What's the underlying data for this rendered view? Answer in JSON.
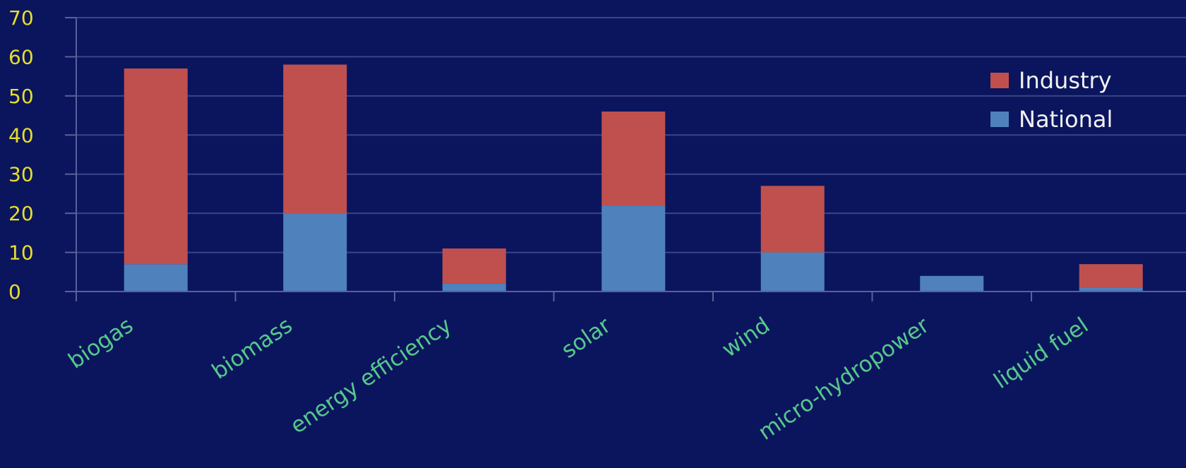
{
  "chart_data": {
    "type": "bar",
    "stacked": true,
    "categories": [
      "biogas",
      "biomass",
      "energy efficiency",
      "solar",
      "wind",
      "micro-hydropower",
      "liquid fuel"
    ],
    "series": [
      {
        "name": "National",
        "color": "#4f81bd",
        "values": [
          7,
          20,
          2,
          22,
          10,
          4,
          1
        ]
      },
      {
        "name": "Industry",
        "color": "#c0504d",
        "values": [
          50,
          38,
          9,
          24,
          17,
          0,
          6
        ]
      }
    ],
    "yticks": [
      "0",
      "10",
      "20",
      "30",
      "40",
      "50",
      "60",
      "70"
    ],
    "ylim": [
      0,
      70
    ],
    "grid": true,
    "legend": {
      "position": "top-right",
      "order": [
        "Industry",
        "National"
      ]
    },
    "background_color": "#0b155e",
    "tick_label_color": "#e6df2a",
    "category_label_color": "#56c98a"
  }
}
